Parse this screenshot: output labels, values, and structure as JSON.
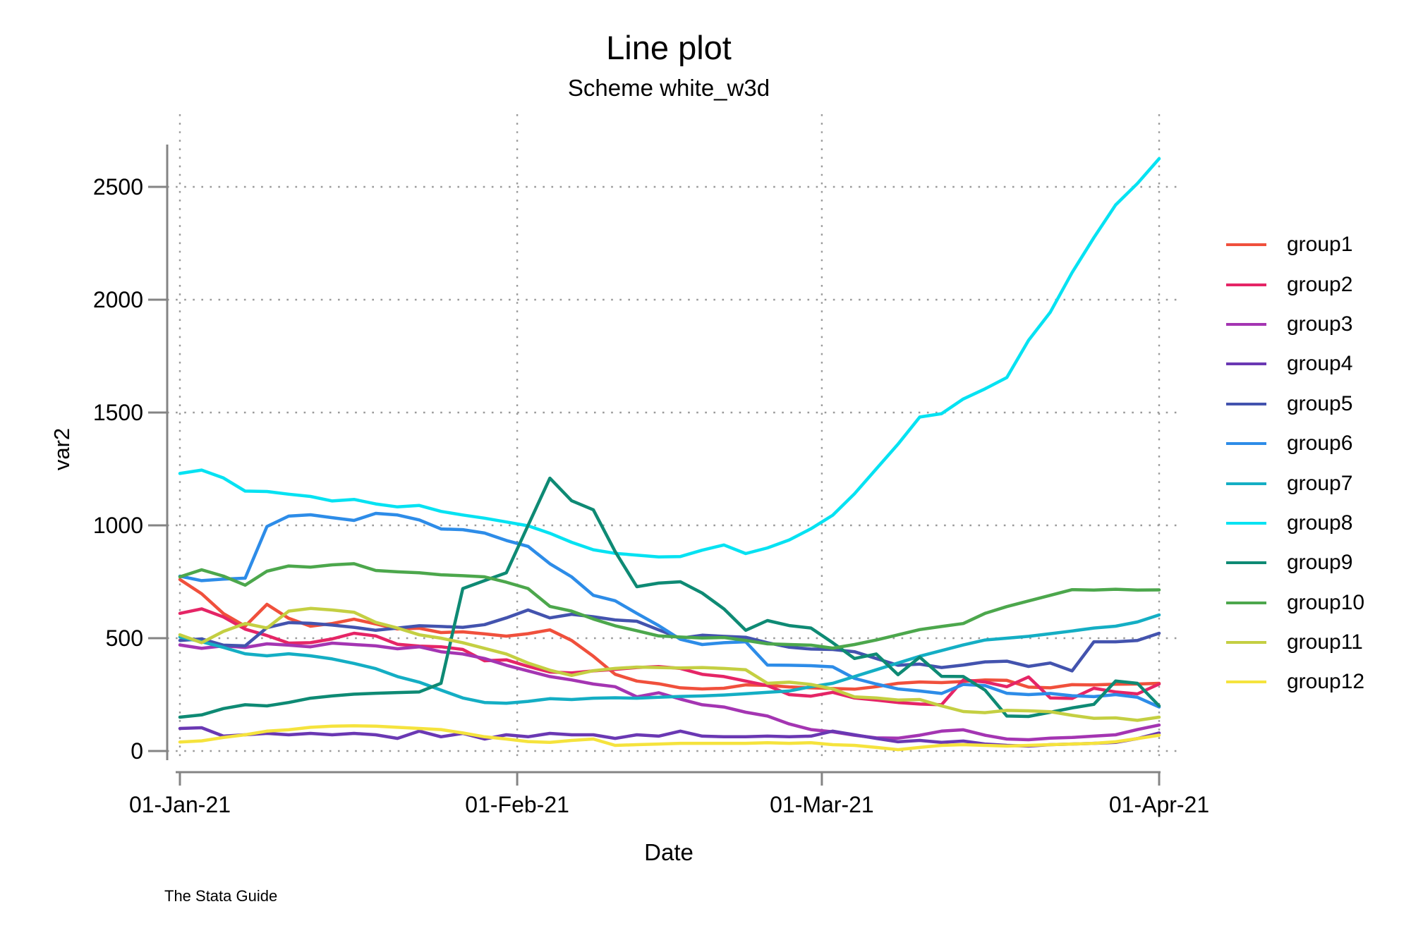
{
  "title": "Line plot",
  "subtitle": "Scheme white_w3d",
  "watermark": "The Stata Guide",
  "chart_data": {
    "type": "line",
    "title": "Line plot",
    "subtitle": "Scheme white_w3d",
    "xlabel": "Date",
    "ylabel": "var2",
    "legend_position": "right",
    "grid": "dotted",
    "axis_color": "#848484",
    "grid_color": "#9a9a9a",
    "ylim": [
      0,
      2650
    ],
    "y_ticks": [
      0,
      500,
      1000,
      1500,
      2000,
      2500
    ],
    "x_tick_days": [
      0,
      31,
      59,
      90
    ],
    "x_tick_labels": [
      "01-Jan-21",
      "01-Feb-21",
      "01-Mar-21",
      "01-Apr-21"
    ],
    "x_days": [
      0,
      2,
      4,
      6,
      8,
      10,
      12,
      14,
      16,
      18,
      20,
      22,
      24,
      26,
      28,
      30,
      32,
      34,
      36,
      38,
      40,
      42,
      44,
      46,
      48,
      50,
      52,
      54,
      56,
      58,
      60,
      62,
      64,
      66,
      68,
      70,
      72,
      74,
      76,
      78,
      80,
      82,
      84,
      86,
      88,
      90
    ],
    "series": [
      {
        "name": "group1",
        "color": "#F0503C",
        "values": [
          760,
          697,
          609,
          553,
          650,
          588,
          553,
          565,
          584,
          563,
          541,
          544,
          525,
          528,
          519,
          509,
          520,
          537,
          490,
          420,
          340,
          310,
          298,
          280,
          275,
          278,
          293,
          291,
          284,
          280,
          277,
          274,
          285,
          300,
          306,
          303,
          308,
          315,
          313,
          283,
          280,
          294,
          293,
          296,
          297,
          300
        ]
      },
      {
        "name": "group2",
        "color": "#E52566",
        "values": [
          610,
          630,
          594,
          540,
          512,
          478,
          480,
          497,
          522,
          510,
          473,
          465,
          462,
          450,
          400,
          404,
          375,
          350,
          346,
          355,
          362,
          370,
          374,
          366,
          340,
          330,
          310,
          290,
          250,
          243,
          260,
          235,
          226,
          215,
          208,
          205,
          315,
          306,
          285,
          328,
          235,
          233,
          278,
          262,
          253,
          297
        ]
      },
      {
        "name": "group3",
        "color": "#A435B2",
        "values": [
          470,
          455,
          466,
          459,
          475,
          469,
          462,
          478,
          472,
          466,
          453,
          462,
          440,
          430,
          410,
          380,
          355,
          330,
          315,
          297,
          285,
          240,
          258,
          230,
          205,
          195,
          172,
          155,
          120,
          95,
          85,
          70,
          58,
          57,
          70,
          88,
          94,
          70,
          53,
          50,
          57,
          60,
          66,
          72,
          95,
          115
        ]
      },
      {
        "name": "group4",
        "color": "#6A38B3",
        "values": [
          100,
          103,
          66,
          72,
          78,
          72,
          78,
          72,
          78,
          72,
          56,
          88,
          63,
          78,
          53,
          72,
          63,
          78,
          72,
          72,
          56,
          72,
          66,
          88,
          66,
          63,
          63,
          66,
          63,
          66,
          88,
          72,
          56,
          41,
          47,
          38,
          44,
          31,
          25,
          22,
          28,
          31,
          34,
          38,
          55,
          80
        ]
      },
      {
        "name": "group5",
        "color": "#4353AE",
        "values": [
          490,
          497,
          469,
          466,
          547,
          569,
          566,
          558,
          548,
          535,
          545,
          555,
          552,
          548,
          560,
          590,
          625,
          590,
          606,
          595,
          581,
          575,
          537,
          500,
          513,
          508,
          504,
          480,
          460,
          452,
          450,
          440,
          410,
          380,
          385,
          370,
          381,
          395,
          398,
          375,
          390,
          355,
          484,
          484,
          490,
          522
        ]
      },
      {
        "name": "group6",
        "color": "#2D8CE8",
        "values": [
          775,
          755,
          762,
          766,
          995,
          1041,
          1047,
          1034,
          1022,
          1053,
          1046,
          1024,
          984,
          981,
          966,
          933,
          907,
          830,
          772,
          690,
          666,
          610,
          556,
          495,
          472,
          480,
          484,
          381,
          380,
          378,
          373,
          322,
          297,
          275,
          266,
          255,
          295,
          290,
          256,
          250,
          255,
          245,
          241,
          250,
          238,
          195
        ]
      },
      {
        "name": "group7",
        "color": "#14AEC4",
        "values": [
          505,
          484,
          459,
          431,
          422,
          431,
          422,
          408,
          388,
          365,
          330,
          305,
          270,
          235,
          215,
          212,
          220,
          232,
          228,
          234,
          236,
          234,
          238,
          242,
          244,
          248,
          254,
          260,
          266,
          285,
          300,
          330,
          360,
          390,
          420,
          445,
          470,
          492,
          500,
          508,
          520,
          532,
          545,
          553,
          572,
          603
        ]
      },
      {
        "name": "group8",
        "color": "#06E2F2",
        "values": [
          1230,
          1245,
          1210,
          1152,
          1150,
          1138,
          1128,
          1108,
          1115,
          1095,
          1082,
          1088,
          1062,
          1046,
          1032,
          1015,
          998,
          965,
          925,
          892,
          876,
          868,
          860,
          862,
          890,
          913,
          875,
          900,
          935,
          985,
          1045,
          1140,
          1250,
          1360,
          1480,
          1495,
          1560,
          1605,
          1655,
          1820,
          1945,
          2120,
          2275,
          2420,
          2515,
          2625
        ]
      },
      {
        "name": "group9",
        "color": "#0E8A74",
        "values": [
          150,
          160,
          188,
          205,
          200,
          215,
          234,
          244,
          252,
          256,
          259,
          262,
          300,
          720,
          755,
          790,
          1000,
          1209,
          1109,
          1069,
          884,
          728,
          744,
          750,
          700,
          630,
          535,
          578,
          556,
          545,
          480,
          410,
          430,
          338,
          416,
          331,
          330,
          270,
          155,
          153,
          172,
          191,
          207,
          310,
          300,
          200
        ]
      },
      {
        "name": "group10",
        "color": "#4CA74C",
        "values": [
          772,
          803,
          775,
          735,
          797,
          820,
          815,
          825,
          830,
          800,
          794,
          790,
          781,
          777,
          772,
          748,
          720,
          641,
          620,
          585,
          555,
          533,
          510,
          505,
          501,
          503,
          490,
          475,
          472,
          469,
          456,
          472,
          492,
          515,
          538,
          552,
          565,
          610,
          640,
          665,
          690,
          715,
          713,
          717,
          713,
          714
        ]
      },
      {
        "name": "group11",
        "color": "#C4CF42",
        "values": [
          515,
          480,
          530,
          565,
          545,
          620,
          632,
          625,
          615,
          570,
          545,
          515,
          500,
          480,
          455,
          430,
          390,
          358,
          335,
          356,
          366,
          372,
          370,
          368,
          370,
          366,
          360,
          300,
          305,
          295,
          275,
          240,
          235,
          226,
          228,
          200,
          175,
          170,
          180,
          178,
          174,
          158,
          145,
          147,
          136,
          150
        ]
      },
      {
        "name": "group12",
        "color": "#F5E33D",
        "values": [
          40,
          45,
          60,
          72,
          88,
          94,
          105,
          110,
          112,
          110,
          105,
          100,
          95,
          80,
          63,
          53,
          42,
          38,
          47,
          53,
          25,
          28,
          31,
          34,
          34,
          34,
          34,
          37,
          34,
          37,
          28,
          25,
          16,
          6,
          16,
          25,
          28,
          25,
          22,
          25,
          28,
          31,
          34,
          41,
          55,
          70
        ]
      }
    ]
  }
}
